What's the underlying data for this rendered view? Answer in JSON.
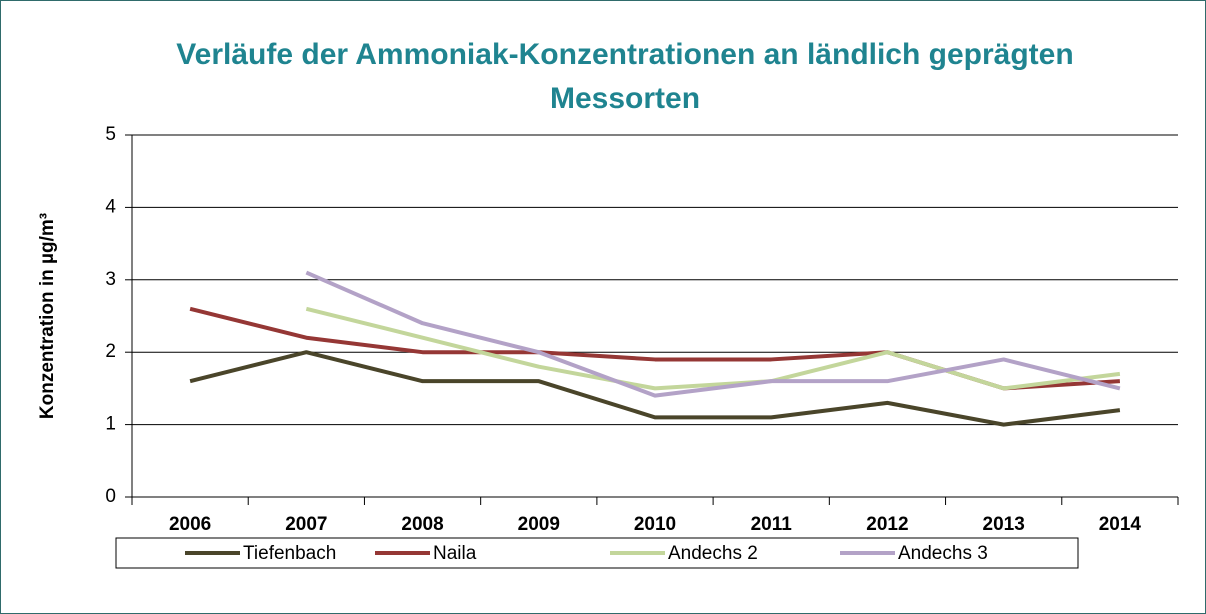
{
  "chart_data": {
    "type": "line",
    "title": "Verläufe der Ammoniak-Konzentrationen an ländlich geprägten Messorten",
    "y_label": "Konzentration in µg/m³",
    "categories": [
      "2006",
      "2007",
      "2008",
      "2009",
      "2010",
      "2011",
      "2012",
      "2013",
      "2014"
    ],
    "series": [
      {
        "name": "Tiefenbach",
        "color": "#4a452a",
        "values": [
          1.6,
          2.0,
          1.6,
          1.6,
          1.1,
          1.1,
          1.3,
          1.0,
          1.2
        ]
      },
      {
        "name": "Naila",
        "color": "#953735",
        "values": [
          2.6,
          2.2,
          2.0,
          2.0,
          1.9,
          1.9,
          2.0,
          1.5,
          1.6
        ]
      },
      {
        "name": "Andechs 2",
        "color": "#c3d69b",
        "values": [
          null,
          2.6,
          2.2,
          1.8,
          1.5,
          1.6,
          2.0,
          1.5,
          1.7
        ]
      },
      {
        "name": "Andechs 3",
        "color": "#b3a2c7",
        "values": [
          null,
          3.1,
          2.4,
          2.0,
          1.4,
          1.6,
          1.6,
          1.9,
          1.5
        ]
      }
    ],
    "ylim": [
      0,
      5
    ],
    "yticks": [
      0,
      1,
      2,
      3,
      4,
      5
    ],
    "grid": true,
    "legend": "bottom"
  }
}
